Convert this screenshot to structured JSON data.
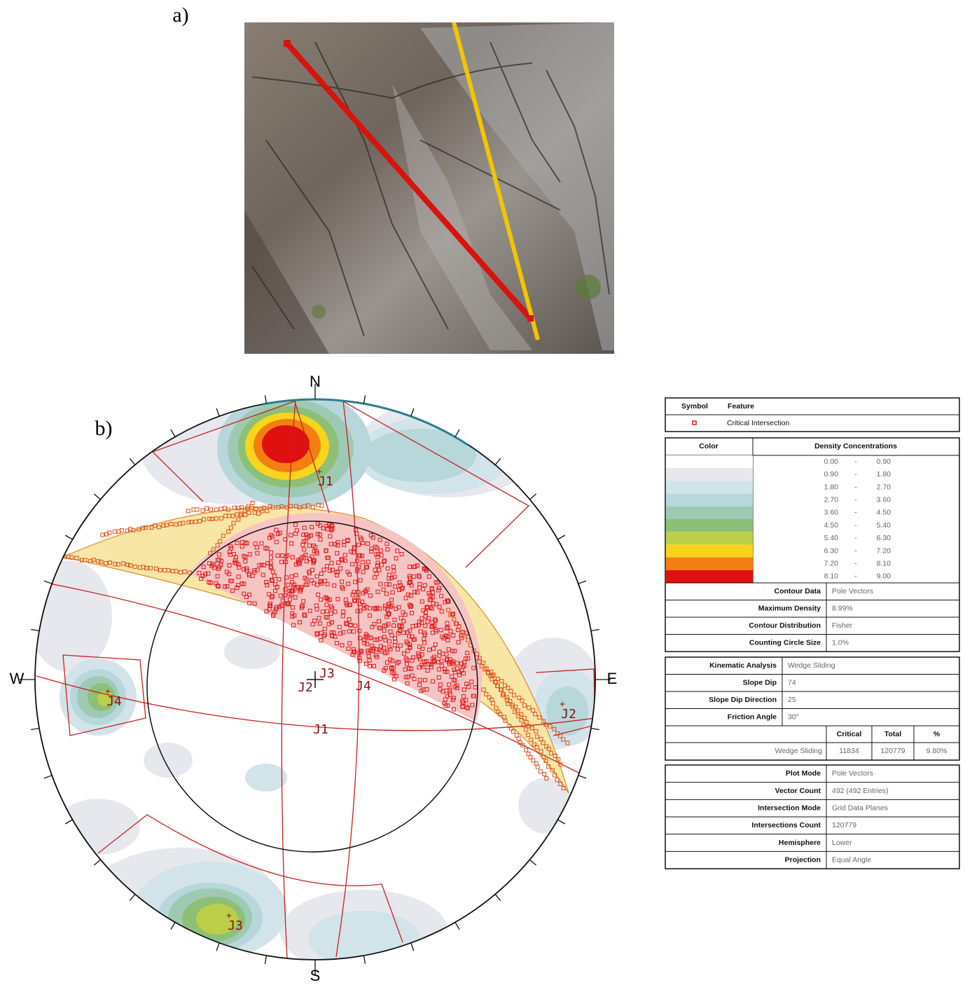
{
  "figure": {
    "panel_a": "a)",
    "panel_b": "b)"
  },
  "stereonet": {
    "north": "N",
    "east": "E",
    "south": "S",
    "west": "W",
    "pole_labels": [
      "J1",
      "J2",
      "J3",
      "J4"
    ],
    "plane_labels": [
      "J1",
      "J2",
      "J3",
      "J4"
    ]
  },
  "legend": {
    "symbol_header": "Symbol",
    "feature_header": "Feature",
    "feature": "Critical Intersection",
    "color_header": "Color",
    "density_header": "Density Concentrations",
    "separator": "-",
    "density_rows": [
      {
        "color": "#ffffff",
        "from": "0.00",
        "to": "0.90"
      },
      {
        "color": "#e6e8ee",
        "from": "0.90",
        "to": "1.80"
      },
      {
        "color": "#d2e3ea",
        "from": "1.80",
        "to": "2.70"
      },
      {
        "color": "#b7d7da",
        "from": "2.70",
        "to": "3.60"
      },
      {
        "color": "#9ecab4",
        "from": "3.60",
        "to": "4.50"
      },
      {
        "color": "#8dbf77",
        "from": "4.50",
        "to": "5.40"
      },
      {
        "color": "#bccf48",
        "from": "5.40",
        "to": "6.30"
      },
      {
        "color": "#f8d51c",
        "from": "6.30",
        "to": "7.20"
      },
      {
        "color": "#f37e12",
        "from": "7.20",
        "to": "8.10"
      },
      {
        "color": "#de1010",
        "from": "8.10",
        "to": "9.00"
      }
    ],
    "contour_rows": [
      [
        "Contour Data",
        "Pole Vectors"
      ],
      [
        "Maximum Density",
        "8.99%"
      ],
      [
        "Contour Distribution",
        "Fisher"
      ],
      [
        "Counting Circle Size",
        "1.0%"
      ]
    ],
    "kinematic_rows": [
      [
        "Kinematic Analysis",
        "Wedge Sliding"
      ],
      [
        "Slope Dip",
        "74"
      ],
      [
        "Slope Dip Direction",
        "25"
      ],
      [
        "Friction Angle",
        "30°"
      ]
    ],
    "result_header": [
      "Critical",
      "Total",
      "%"
    ],
    "result_row": [
      "Wedge Sliding",
      "11834",
      "120779",
      "9.80%"
    ],
    "plot_rows": [
      [
        "Plot Mode",
        "Pole Vectors"
      ],
      [
        "Vector Count",
        "492 (492 Entries)"
      ],
      [
        "Intersection Mode",
        "Grid Data Planes"
      ],
      [
        "Intersections Count",
        "120779"
      ],
      [
        "Hemisphere",
        "Lower"
      ],
      [
        "Projection",
        "Equal Angle"
      ]
    ]
  }
}
